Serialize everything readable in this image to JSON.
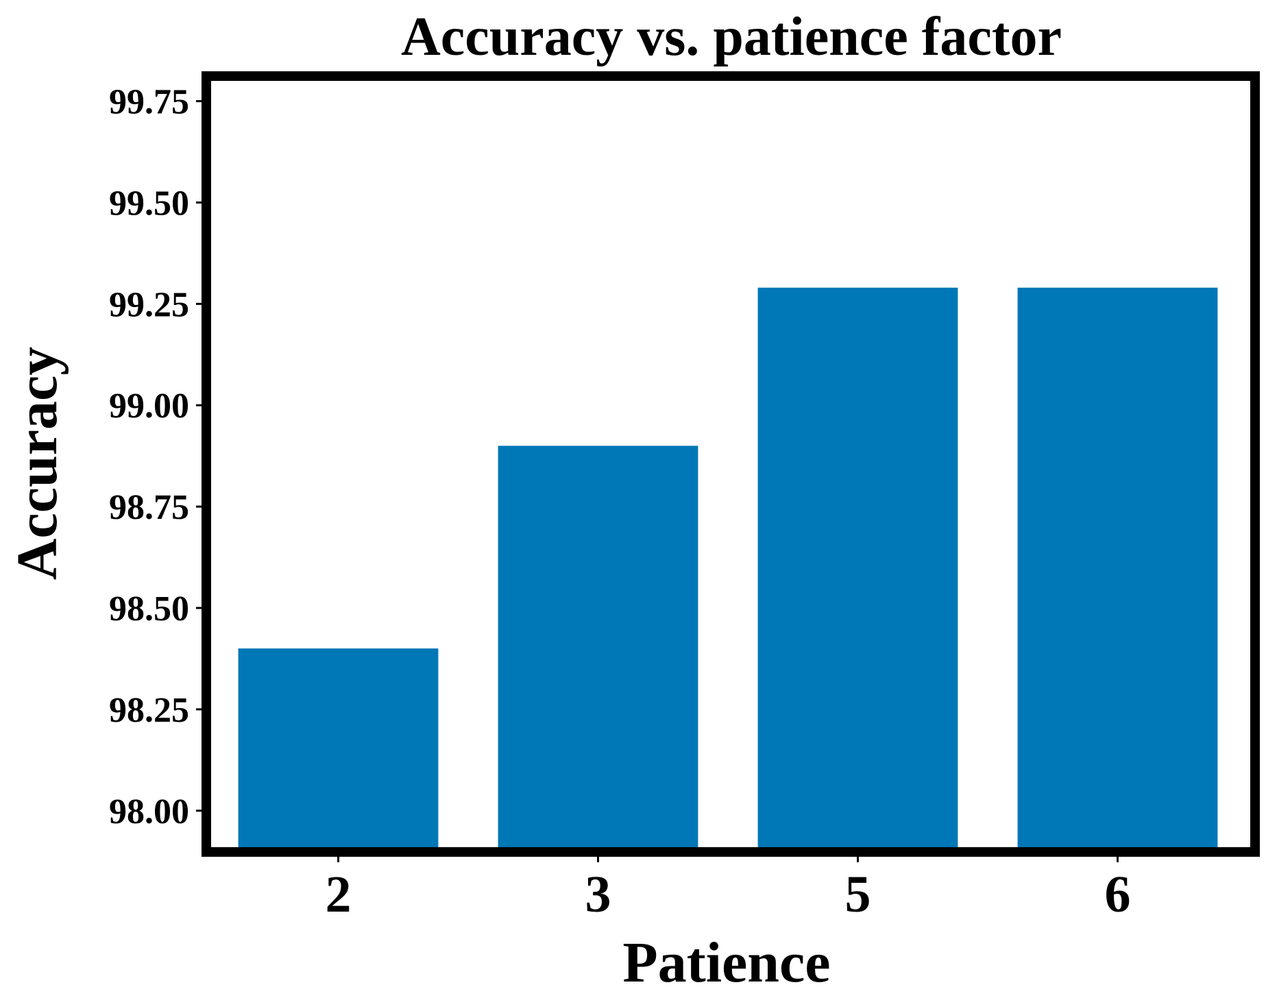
{
  "chart_data": {
    "type": "bar",
    "title": "Accuracy vs. patience factor",
    "xlabel": "Patience",
    "ylabel": "Accuracy",
    "categories": [
      "2",
      "3",
      "5",
      "6"
    ],
    "values": [
      98.4,
      98.9,
      99.29,
      99.29
    ],
    "ylim": [
      97.91,
      99.8
    ],
    "yticks": [
      "98.00",
      "98.25",
      "98.50",
      "98.75",
      "99.00",
      "99.25",
      "99.50",
      "99.75"
    ],
    "bar_color": "#0077b6",
    "grid": false,
    "legend": "none"
  }
}
